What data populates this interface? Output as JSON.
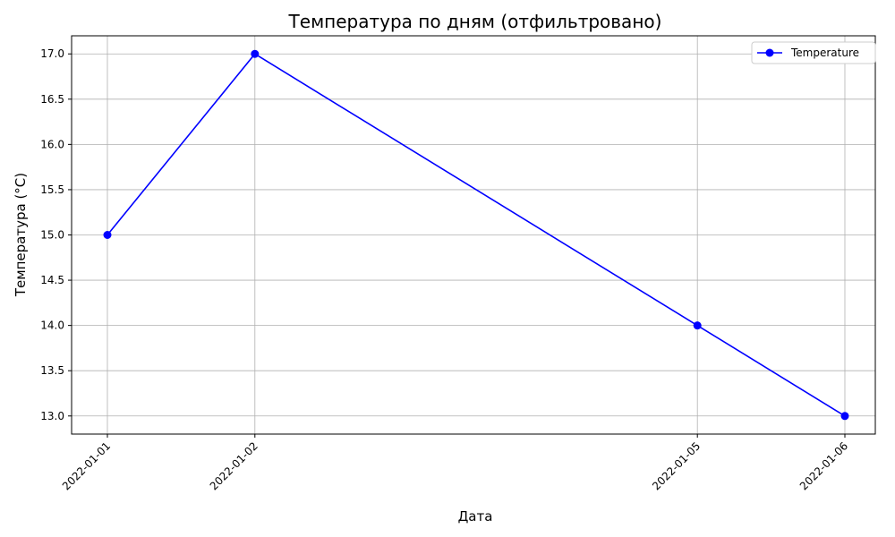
{
  "chart_data": {
    "type": "line",
    "title": "Температура по дням (отфильтровано)",
    "xlabel": "Дата",
    "ylabel": "Температура (°C)",
    "categories": [
      "2022-01-01",
      "2022-01-02",
      "2022-01-05",
      "2022-01-06"
    ],
    "series": [
      {
        "name": "Temperature",
        "values": [
          15.0,
          17.0,
          14.0,
          13.0
        ],
        "color": "#0000ff",
        "marker": "circle"
      }
    ],
    "ylim": [
      12.8,
      17.2
    ],
    "yticks": [
      "13.0",
      "13.5",
      "14.0",
      "14.5",
      "15.0",
      "15.5",
      "16.0",
      "16.5",
      "17.0"
    ],
    "grid": true,
    "legend_position": "top-right",
    "xtick_rotation": 45
  }
}
